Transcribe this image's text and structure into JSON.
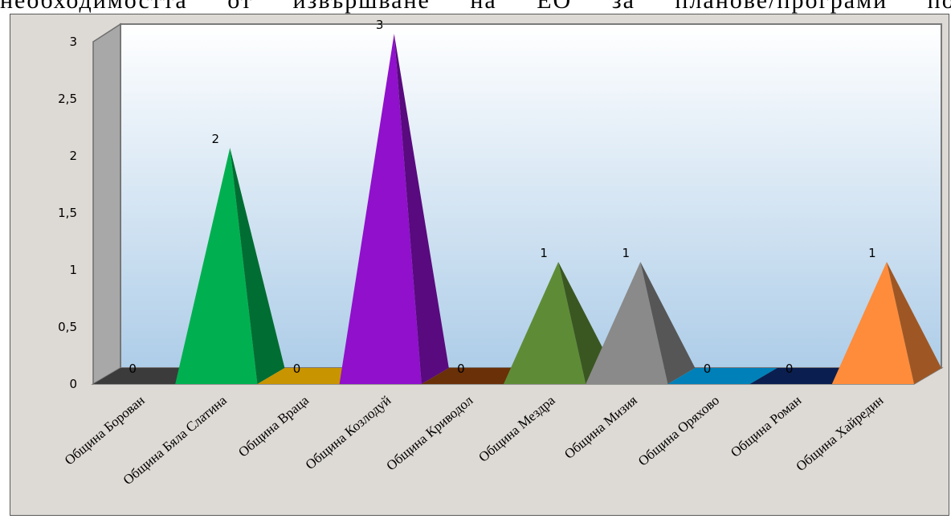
{
  "header_text": "необходимостта от извършване на ЕО за планове/програми по общини",
  "chart_data": {
    "type": "bar",
    "style": "3d-pyramid",
    "categories": [
      "Община Борован",
      "Община Бяла Слатина",
      "Община Враца",
      "Община Козлодуй",
      "Община Криводол",
      "Община Мездра",
      "Община Мизия",
      "Община Оряхово",
      "Община Роман",
      "Община Хайредин"
    ],
    "values": [
      0,
      2,
      0,
      3,
      0,
      1,
      1,
      0,
      0,
      1
    ],
    "data_labels": [
      "0",
      "2",
      "0",
      "3",
      "0",
      "1",
      "1",
      "0",
      "0",
      "1"
    ],
    "colors": [
      "#3b3b3b",
      "#00b050",
      "#c89400",
      "#9010cc",
      "#6a3008",
      "#5e8c36",
      "#8a8a8a",
      "#0080b8",
      "#0a1f50",
      "#ff8c3a"
    ],
    "ylim": [
      0,
      3
    ],
    "yticks": [
      "0",
      "0,5",
      "1",
      "1,5",
      "2",
      "2,5",
      "3"
    ],
    "grid": false,
    "legend": "none"
  }
}
